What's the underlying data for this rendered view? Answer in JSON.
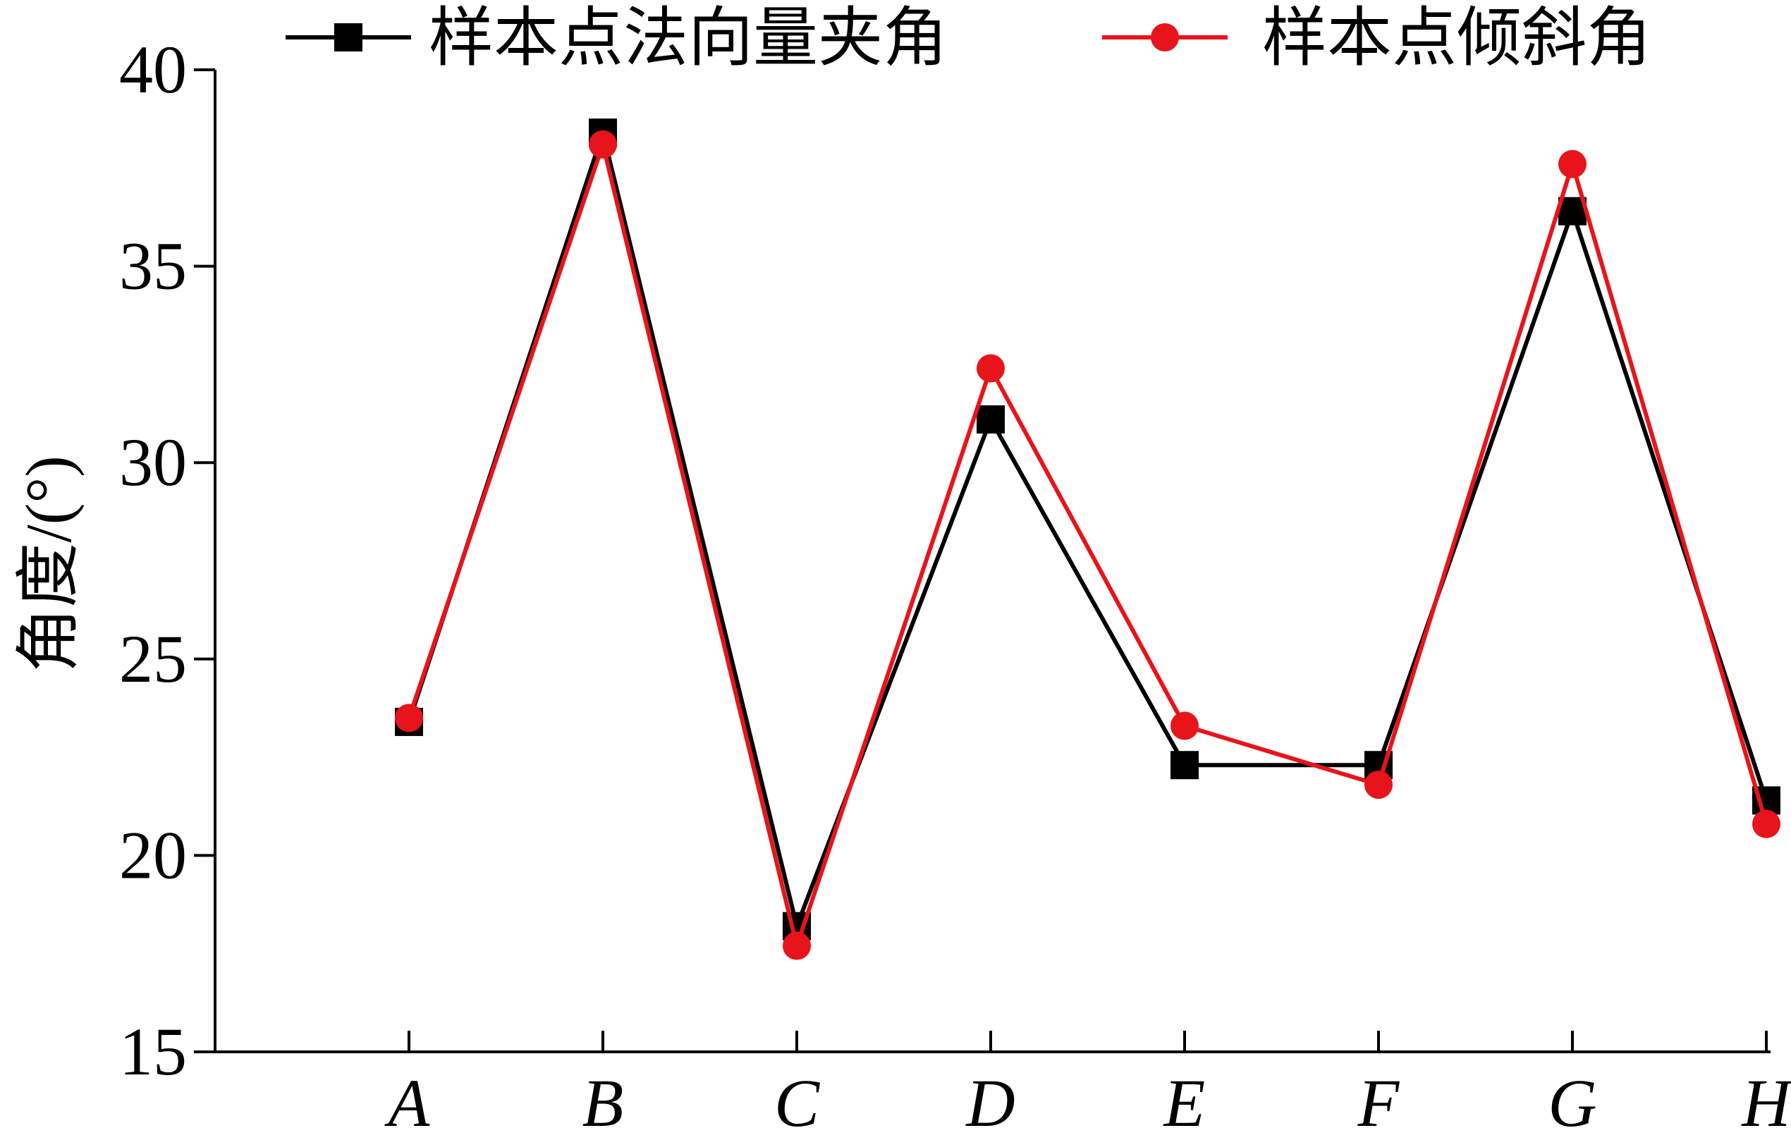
{
  "chart_data": {
    "type": "line",
    "title": "",
    "xlabel": "",
    "ylabel": "角度/(°)",
    "categories": [
      "A",
      "B",
      "C",
      "D",
      "E",
      "F",
      "G",
      "H"
    ],
    "ylim": [
      15,
      40
    ],
    "yticks": [
      15,
      20,
      25,
      30,
      35,
      40
    ],
    "grid": false,
    "legend_position": "top",
    "series": [
      {
        "name": "样本点法向量夹角",
        "color": "#000000",
        "marker": "square",
        "values": [
          23.4,
          38.4,
          18.2,
          31.1,
          22.3,
          22.3,
          36.4,
          21.4
        ]
      },
      {
        "name": "样本点倾斜角",
        "color": "#e8141b",
        "marker": "circle",
        "values": [
          23.5,
          38.1,
          17.7,
          32.4,
          23.3,
          21.8,
          37.6,
          20.8
        ]
      }
    ]
  }
}
